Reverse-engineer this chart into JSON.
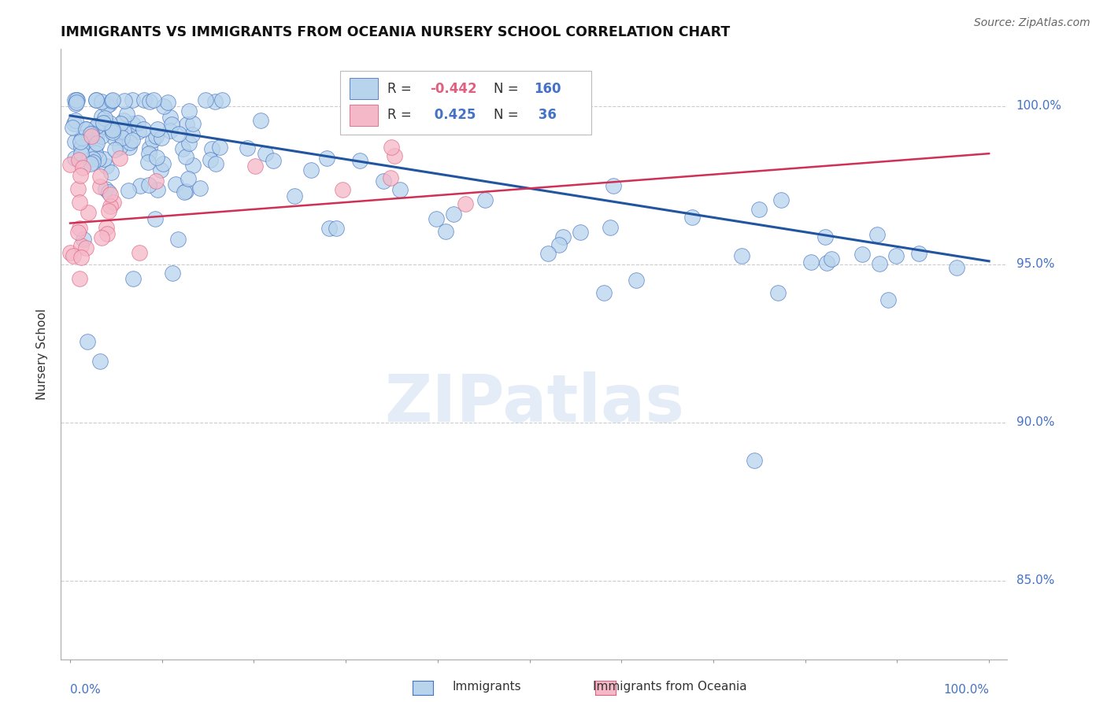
{
  "title": "IMMIGRANTS VS IMMIGRANTS FROM OCEANIA NURSERY SCHOOL CORRELATION CHART",
  "source_text": "Source: ZipAtlas.com",
  "ylabel": "Nursery School",
  "legend_r_blue": "-0.442",
  "legend_n_blue": "160",
  "legend_r_pink": "0.425",
  "legend_n_pink": "36",
  "blue_fill": "#b8d4ec",
  "pink_fill": "#f5b8c8",
  "blue_edge": "#4472c4",
  "pink_edge": "#e06080",
  "blue_line": "#2255a0",
  "pink_line": "#d03055",
  "label_color": "#4472c4",
  "watermark": "ZIPatlas",
  "ytick_values": [
    0.85,
    0.9,
    0.95,
    1.0
  ],
  "ylim": [
    0.825,
    1.018
  ],
  "xlim": [
    -0.01,
    1.02
  ]
}
